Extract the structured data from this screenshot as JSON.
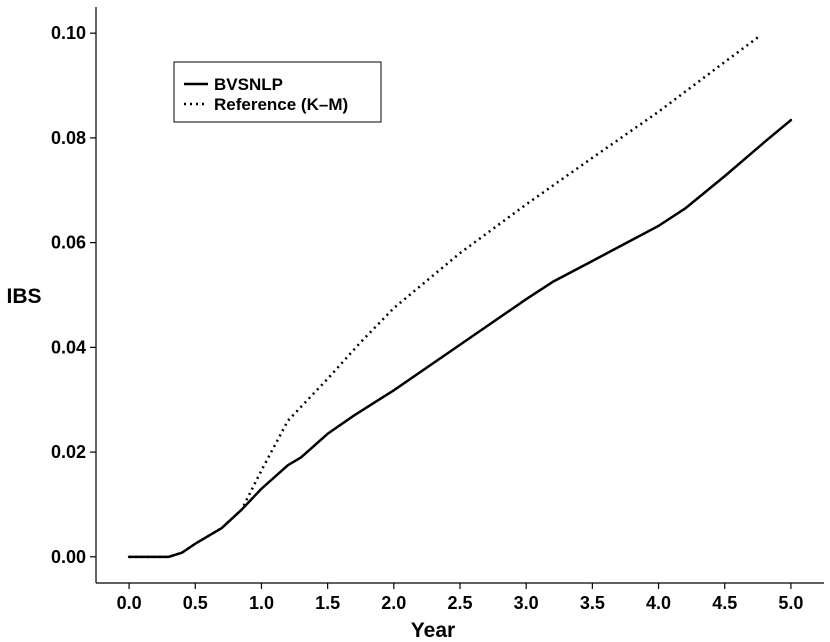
{
  "chart_data": {
    "type": "line",
    "xlabel": "Year",
    "ylabel": "IBS",
    "xlim": [
      -0.25,
      5.25
    ],
    "ylim": [
      -0.005,
      0.105
    ],
    "xticks": [
      "0.0",
      "0.5",
      "1.0",
      "1.5",
      "2.0",
      "2.5",
      "3.0",
      "3.5",
      "4.0",
      "4.5",
      "5.0"
    ],
    "yticks": [
      "0.00",
      "0.02",
      "0.04",
      "0.06",
      "0.08",
      "0.10"
    ],
    "grid": false,
    "legend_position": "top-left",
    "series": [
      {
        "name": "BVSNLP",
        "style": "solid",
        "color": "#000000",
        "x": [
          0,
          0.3,
          0.4,
          0.5,
          0.7,
          0.85,
          1.0,
          1.2,
          1.3,
          1.5,
          1.7,
          2.0,
          2.5,
          3.0,
          3.2,
          3.5,
          4.0,
          4.2,
          4.5,
          4.8,
          5.0
        ],
        "y": [
          0,
          0,
          0.0008,
          0.0025,
          0.0055,
          0.009,
          0.013,
          0.0175,
          0.019,
          0.0235,
          0.027,
          0.0318,
          0.0405,
          0.0492,
          0.0525,
          0.0565,
          0.0632,
          0.0665,
          0.0727,
          0.0792,
          0.0834
        ]
      },
      {
        "name": "Reference (K–M)",
        "style": "dotted",
        "color": "#000000",
        "x": [
          0,
          0.3,
          0.4,
          0.5,
          0.7,
          0.85,
          1.0,
          1.2,
          1.5,
          1.75,
          2.0,
          2.5,
          3.0,
          3.5,
          4.0,
          4.5,
          4.75
        ],
        "y": [
          0,
          0,
          0.0008,
          0.0025,
          0.0055,
          0.009,
          0.0165,
          0.026,
          0.034,
          0.041,
          0.0475,
          0.058,
          0.0673,
          0.0762,
          0.085,
          0.0945,
          0.0992
        ]
      }
    ]
  }
}
